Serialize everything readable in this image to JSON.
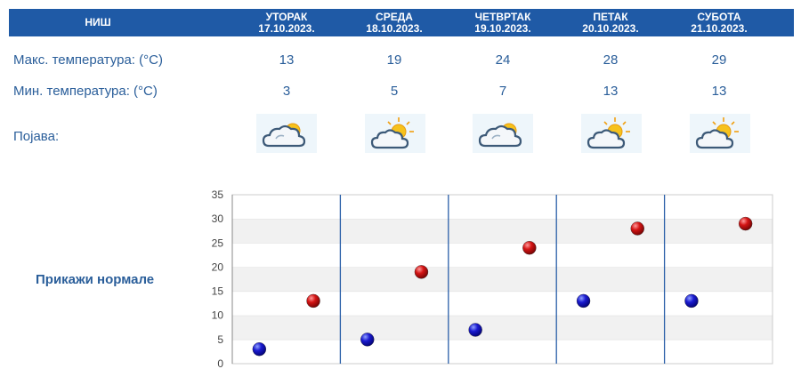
{
  "header": {
    "city": "НИШ",
    "days": [
      {
        "day": "УТОРАК",
        "date": "17.10.2023."
      },
      {
        "day": "СРЕДА",
        "date": "18.10.2023."
      },
      {
        "day": "ЧЕТВРТАК",
        "date": "19.10.2023."
      },
      {
        "day": "ПЕТАК",
        "date": "20.10.2023."
      },
      {
        "day": "СУБОТА",
        "date": "21.10.2023."
      }
    ]
  },
  "rows": {
    "max_label": "Макс. температура: (°C)",
    "min_label": "Мин. температура: (°C)",
    "phenomenon_label": "Појава:",
    "max": [
      "13",
      "19",
      "24",
      "28",
      "29"
    ],
    "min": [
      "3",
      "5",
      "7",
      "13",
      "13"
    ],
    "icons": [
      "partly-cloudy-icon",
      "sun-behind-cloud-icon",
      "partly-cloudy-icon",
      "sun-behind-cloud-icon",
      "sun-behind-cloud-icon"
    ]
  },
  "normals_link": "Прикажи нормале",
  "chart_data": {
    "type": "scatter",
    "categories": [
      "17.10.2023.",
      "18.10.2023.",
      "19.10.2023.",
      "20.10.2023.",
      "21.10.2023."
    ],
    "ylim": [
      0,
      35
    ],
    "yticks": [
      0,
      5,
      10,
      15,
      20,
      25,
      30,
      35
    ],
    "series": [
      {
        "color": "#1010c8",
        "values": [
          3,
          5,
          7,
          13,
          13
        ]
      },
      {
        "color": "#d01010",
        "values": [
          13,
          19,
          24,
          28,
          29
        ]
      }
    ],
    "grid": "horizontal-bands"
  }
}
